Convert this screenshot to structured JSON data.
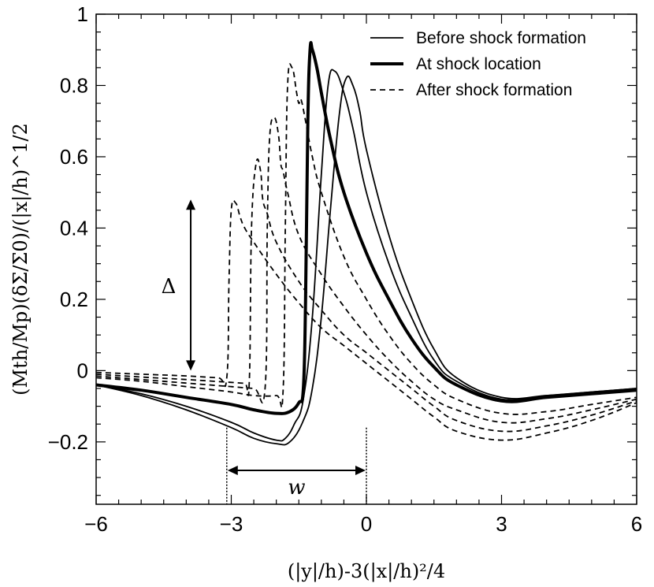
{
  "chart_data": {
    "type": "line",
    "title": "",
    "xlabel": "(|y|/h)-3(|x|/h)²/4",
    "ylabel": "(Mth/Mp)(δΣ/Σ0)/(|x|/h)^1/2",
    "xlim": [
      -6,
      6
    ],
    "ylim": [
      -0.375,
      1.0
    ],
    "xticks": [
      -6,
      -3,
      0,
      3,
      6
    ],
    "xtick_labels": [
      "−6",
      "−3",
      "0",
      "3",
      "6"
    ],
    "yticks": [
      -0.2,
      0,
      0.2,
      0.4,
      0.6,
      0.8,
      1
    ],
    "ytick_labels": [
      "−0.2",
      "0",
      "0.2",
      "0.4",
      "0.6",
      "0.8",
      "1"
    ],
    "grid": false,
    "legend_position": "top-right",
    "legend": [
      {
        "label": "Before shock formation",
        "style": "thin-solid"
      },
      {
        "label": "At shock location",
        "style": "thick-solid"
      },
      {
        "label": "After shock formation",
        "style": "dashed"
      }
    ],
    "annotations": {
      "delta_label": "Δ",
      "delta_range": [
        0.0,
        0.48
      ],
      "delta_x": -3.9,
      "w_label": "w",
      "w_range": [
        -3.1,
        0.0
      ],
      "w_y": -0.28
    },
    "series": [
      {
        "name": "Before shock formation",
        "style": "thin-solid",
        "x": [
          -6,
          -5,
          -4,
          -3,
          -2.5,
          -2.0,
          -1.7,
          -1.4,
          -1.2,
          -1.0,
          -0.8,
          -0.6,
          -0.45,
          -0.3,
          -0.15,
          0,
          0.5,
          1.0,
          1.5,
          2.0,
          3.0,
          4.0,
          5.0,
          6.0
        ],
        "y": [
          -0.04,
          -0.07,
          -0.11,
          -0.16,
          -0.19,
          -0.205,
          -0.2,
          -0.14,
          -0.05,
          0.15,
          0.45,
          0.72,
          0.82,
          0.8,
          0.73,
          0.62,
          0.38,
          0.2,
          0.06,
          -0.02,
          -0.075,
          -0.07,
          -0.06,
          -0.05
        ]
      },
      {
        "name": "Before shock formation",
        "style": "thin-solid",
        "x": [
          -6,
          -5,
          -4,
          -3,
          -2.5,
          -2.0,
          -1.8,
          -1.6,
          -1.4,
          -1.2,
          -1.0,
          -0.85,
          -0.7,
          -0.5,
          -0.3,
          0,
          0.5,
          1.0,
          1.5,
          2.0,
          3.0,
          4.0,
          5.0,
          6.0
        ],
        "y": [
          -0.04,
          -0.065,
          -0.1,
          -0.145,
          -0.175,
          -0.195,
          -0.19,
          -0.15,
          -0.08,
          0.15,
          0.55,
          0.8,
          0.84,
          0.78,
          0.68,
          0.5,
          0.3,
          0.15,
          0.03,
          -0.03,
          -0.08,
          -0.07,
          -0.06,
          -0.05
        ]
      },
      {
        "name": "At shock location",
        "style": "thick-solid",
        "x": [
          -6,
          -5,
          -4,
          -3,
          -2.5,
          -2.0,
          -1.7,
          -1.5,
          -1.4,
          -1.35,
          -1.3,
          -1.25,
          -1.2,
          -1.1,
          -1.0,
          -0.8,
          -0.5,
          0,
          0.5,
          1.0,
          1.5,
          2.0,
          3.0,
          4.0,
          5.0,
          6.0
        ],
        "y": [
          -0.04,
          -0.055,
          -0.075,
          -0.095,
          -0.11,
          -0.12,
          -0.115,
          -0.09,
          -0.05,
          0.2,
          0.7,
          0.9,
          0.9,
          0.85,
          0.78,
          0.65,
          0.5,
          0.33,
          0.2,
          0.09,
          0.01,
          -0.04,
          -0.085,
          -0.075,
          -0.065,
          -0.055
        ]
      },
      {
        "name": "After shock formation",
        "style": "dashed",
        "x": [
          -6,
          -5,
          -4,
          -3,
          -2.5,
          -2.0,
          -1.85,
          -1.8,
          -1.75,
          -1.65,
          -1.55,
          -1.5,
          -1.45,
          -1.35,
          -1.2,
          -1.0,
          -0.5,
          0,
          0.5,
          1.0,
          1.5,
          2.0,
          3.0,
          4.0,
          5.0,
          6.0
        ],
        "y": [
          -0.02,
          -0.03,
          -0.045,
          -0.06,
          -0.07,
          -0.07,
          -0.06,
          0.4,
          0.8,
          0.85,
          0.78,
          0.75,
          0.76,
          0.7,
          0.6,
          0.5,
          0.32,
          0.2,
          0.1,
          0.02,
          -0.04,
          -0.08,
          -0.12,
          -0.115,
          -0.095,
          -0.075
        ]
      },
      {
        "name": "After shock formation",
        "style": "dashed",
        "x": [
          -6,
          -5,
          -4,
          -3,
          -2.5,
          -2.25,
          -2.2,
          -2.15,
          -2.05,
          -1.95,
          -1.9,
          -1.85,
          -1.75,
          -1.5,
          -1.0,
          -0.5,
          0,
          0.5,
          1.0,
          1.5,
          2.0,
          3.0,
          4.0,
          5.0,
          6.0
        ],
        "y": [
          -0.015,
          -0.025,
          -0.035,
          -0.045,
          -0.05,
          -0.05,
          0.4,
          0.65,
          0.71,
          0.66,
          0.58,
          0.56,
          0.5,
          0.38,
          0.27,
          0.18,
          0.1,
          0.03,
          -0.03,
          -0.08,
          -0.11,
          -0.145,
          -0.135,
          -0.11,
          -0.08
        ]
      },
      {
        "name": "After shock formation",
        "style": "dashed",
        "x": [
          -6,
          -5,
          -4,
          -3,
          -2.7,
          -2.6,
          -2.55,
          -2.45,
          -2.35,
          -2.3,
          -2.2,
          -2.0,
          -1.5,
          -1.0,
          -0.5,
          0,
          0.5,
          1.0,
          1.5,
          2.0,
          3.0,
          4.0,
          5.0,
          6.0
        ],
        "y": [
          -0.01,
          -0.018,
          -0.025,
          -0.033,
          -0.035,
          -0.03,
          0.4,
          0.58,
          0.56,
          0.48,
          0.44,
          0.36,
          0.25,
          0.17,
          0.1,
          0.05,
          0.0,
          -0.05,
          -0.1,
          -0.14,
          -0.17,
          -0.155,
          -0.125,
          -0.085
        ]
      },
      {
        "name": "After shock formation",
        "style": "dashed",
        "x": [
          -6,
          -5,
          -4,
          -3.3,
          -3.1,
          -3.05,
          -3.0,
          -2.9,
          -2.8,
          -2.7,
          -2.5,
          -2.0,
          -1.5,
          -1.0,
          -0.5,
          0,
          0.5,
          1.0,
          1.5,
          2.0,
          3.0,
          4.0,
          5.0,
          6.0
        ],
        "y": [
          -0.005,
          -0.01,
          -0.015,
          -0.02,
          -0.02,
          0.25,
          0.45,
          0.47,
          0.43,
          0.4,
          0.36,
          0.27,
          0.19,
          0.12,
          0.07,
          0.02,
          -0.03,
          -0.08,
          -0.13,
          -0.17,
          -0.195,
          -0.175,
          -0.14,
          -0.09
        ]
      }
    ]
  }
}
